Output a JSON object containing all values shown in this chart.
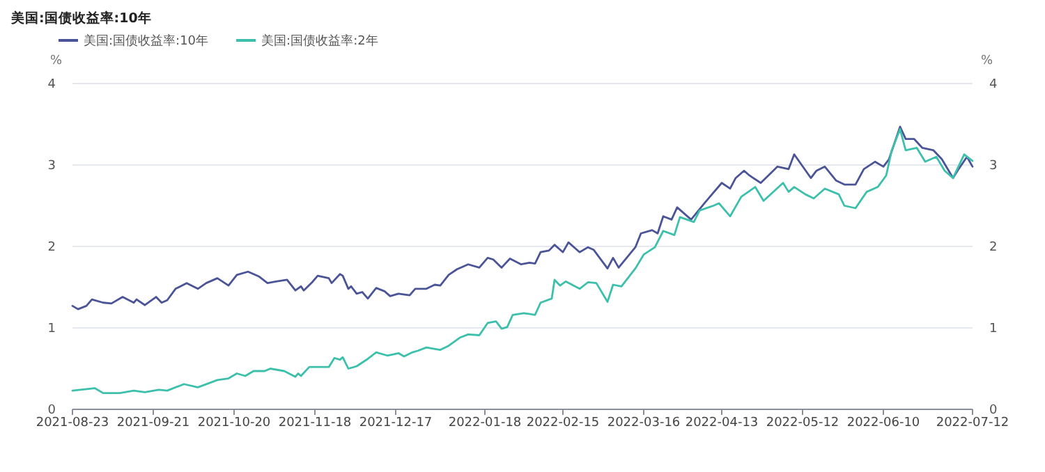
{
  "chart_data": {
    "type": "line",
    "title": "美国:国债收益率:10年",
    "ylabel": "%",
    "y2label": "%",
    "xlim": [
      "2021-08-23",
      "2022-07-12"
    ],
    "xticks": [
      "2021-08-23",
      "2021-09-21",
      "2021-10-20",
      "2021-11-18",
      "2021-12-17",
      "2022-01-18",
      "2022-02-15",
      "2022-03-16",
      "2022-04-13",
      "2022-05-12",
      "2022-06-10",
      "2022-07-12"
    ],
    "ylim": [
      0,
      4
    ],
    "yticks": [
      0,
      1,
      2,
      3,
      4
    ],
    "y2lim": [
      0,
      4
    ],
    "y2ticks": [
      0,
      1,
      2,
      3,
      4
    ],
    "grid": "y",
    "legend": "top left",
    "marker": "none",
    "line_style": "solid",
    "series": [
      {
        "name": "美国:国债收益率:10年",
        "color": "#4a5496",
        "x": [
          "2021-08-23",
          "2021-08-25",
          "2021-08-28",
          "2021-08-30",
          "2021-09-03",
          "2021-09-06",
          "2021-09-10",
          "2021-09-14",
          "2021-09-15",
          "2021-09-18",
          "2021-09-22",
          "2021-09-24",
          "2021-09-26",
          "2021-09-29",
          "2021-10-03",
          "2021-10-07",
          "2021-10-10",
          "2021-10-14",
          "2021-10-18",
          "2021-10-21",
          "2021-10-25",
          "2021-10-29",
          "2021-11-01",
          "2021-11-04",
          "2021-11-08",
          "2021-11-11",
          "2021-11-13",
          "2021-11-14",
          "2021-11-17",
          "2021-11-19",
          "2021-11-23",
          "2021-11-24",
          "2021-11-27",
          "2021-11-28",
          "2021-11-30",
          "2021-12-01",
          "2021-12-03",
          "2021-12-05",
          "2021-12-07",
          "2021-12-10",
          "2021-12-13",
          "2021-12-15",
          "2021-12-18",
          "2021-12-22",
          "2021-12-24",
          "2021-12-28",
          "2021-12-31",
          "2022-01-02",
          "2022-01-05",
          "2022-01-08",
          "2022-01-12",
          "2022-01-16",
          "2022-01-19",
          "2022-01-21",
          "2022-01-24",
          "2022-01-27",
          "2022-01-31",
          "2022-02-03",
          "2022-02-05",
          "2022-02-07",
          "2022-02-10",
          "2022-02-12",
          "2022-02-15",
          "2022-02-17",
          "2022-02-21",
          "2022-02-24",
          "2022-02-26",
          "2022-03-03",
          "2022-03-05",
          "2022-03-07",
          "2022-03-13",
          "2022-03-15",
          "2022-03-19",
          "2022-03-21",
          "2022-03-23",
          "2022-03-26",
          "2022-03-28",
          "2022-04-02",
          "2022-04-07",
          "2022-04-13",
          "2022-04-16",
          "2022-04-18",
          "2022-04-21",
          "2022-04-23",
          "2022-04-27",
          "2022-05-03",
          "2022-05-07",
          "2022-05-09",
          "2022-05-15",
          "2022-05-17",
          "2022-05-20",
          "2022-05-24",
          "2022-05-27",
          "2022-05-31",
          "2022-06-03",
          "2022-06-07",
          "2022-06-10",
          "2022-06-12",
          "2022-06-16",
          "2022-06-18",
          "2022-06-21",
          "2022-06-24",
          "2022-06-28",
          "2022-07-01",
          "2022-07-05",
          "2022-07-07",
          "2022-07-10",
          "2022-07-12"
        ],
        "values": [
          1.27,
          1.23,
          1.27,
          1.35,
          1.31,
          1.3,
          1.38,
          1.31,
          1.35,
          1.28,
          1.38,
          1.31,
          1.34,
          1.48,
          1.55,
          1.48,
          1.55,
          1.61,
          1.52,
          1.65,
          1.69,
          1.63,
          1.55,
          1.57,
          1.59,
          1.46,
          1.51,
          1.46,
          1.56,
          1.64,
          1.61,
          1.55,
          1.66,
          1.64,
          1.48,
          1.51,
          1.42,
          1.44,
          1.36,
          1.49,
          1.45,
          1.39,
          1.42,
          1.4,
          1.48,
          1.48,
          1.53,
          1.52,
          1.65,
          1.72,
          1.78,
          1.74,
          1.86,
          1.84,
          1.74,
          1.85,
          1.78,
          1.8,
          1.79,
          1.93,
          1.95,
          2.02,
          1.93,
          2.05,
          1.93,
          1.99,
          1.96,
          1.73,
          1.86,
          1.74,
          1.99,
          2.16,
          2.2,
          2.16,
          2.37,
          2.33,
          2.48,
          2.33,
          2.54,
          2.78,
          2.71,
          2.84,
          2.93,
          2.87,
          2.78,
          2.98,
          2.95,
          3.13,
          2.84,
          2.93,
          2.98,
          2.81,
          2.76,
          2.76,
          2.95,
          3.04,
          2.98,
          3.07,
          3.47,
          3.32,
          3.32,
          3.21,
          3.18,
          3.07,
          2.84,
          2.95,
          3.1,
          2.98
        ]
      },
      {
        "name": "美国:国债收益率:2年",
        "color": "#3cc0ac",
        "x": [
          "2021-08-23",
          "2021-08-31",
          "2021-09-03",
          "2021-09-09",
          "2021-09-14",
          "2021-09-18",
          "2021-09-23",
          "2021-09-26",
          "2021-10-02",
          "2021-10-07",
          "2021-10-14",
          "2021-10-18",
          "2021-10-21",
          "2021-10-24",
          "2021-10-27",
          "2021-10-31",
          "2021-11-02",
          "2021-11-07",
          "2021-11-11",
          "2021-11-12",
          "2021-11-13",
          "2021-11-16",
          "2021-11-23",
          "2021-11-25",
          "2021-11-27",
          "2021-11-28",
          "2021-11-30",
          "2021-12-03",
          "2021-12-07",
          "2021-12-10",
          "2021-12-14",
          "2021-12-18",
          "2021-12-20",
          "2021-12-23",
          "2021-12-25",
          "2021-12-28",
          "2022-01-02",
          "2022-01-05",
          "2022-01-09",
          "2022-01-12",
          "2022-01-16",
          "2022-01-19",
          "2022-01-22",
          "2022-01-24",
          "2022-01-26",
          "2022-01-28",
          "2022-02-01",
          "2022-02-05",
          "2022-02-07",
          "2022-02-11",
          "2022-02-12",
          "2022-02-14",
          "2022-02-16",
          "2022-02-21",
          "2022-02-24",
          "2022-02-27",
          "2022-03-03",
          "2022-03-05",
          "2022-03-08",
          "2022-03-13",
          "2022-03-16",
          "2022-03-20",
          "2022-03-23",
          "2022-03-27",
          "2022-03-29",
          "2022-04-03",
          "2022-04-05",
          "2022-04-10",
          "2022-04-12",
          "2022-04-16",
          "2022-04-20",
          "2022-04-25",
          "2022-04-28",
          "2022-05-05",
          "2022-05-07",
          "2022-05-09",
          "2022-05-13",
          "2022-05-16",
          "2022-05-20",
          "2022-05-25",
          "2022-05-27",
          "2022-05-31",
          "2022-06-04",
          "2022-06-08",
          "2022-06-11",
          "2022-06-13",
          "2022-06-16",
          "2022-06-18",
          "2022-06-22",
          "2022-06-25",
          "2022-06-29",
          "2022-07-02",
          "2022-07-05",
          "2022-07-09",
          "2022-07-12"
        ],
        "values": [
          0.23,
          0.26,
          0.2,
          0.2,
          0.23,
          0.21,
          0.24,
          0.23,
          0.31,
          0.27,
          0.36,
          0.38,
          0.44,
          0.41,
          0.47,
          0.47,
          0.5,
          0.47,
          0.4,
          0.44,
          0.41,
          0.52,
          0.52,
          0.63,
          0.61,
          0.64,
          0.5,
          0.53,
          0.62,
          0.7,
          0.66,
          0.69,
          0.65,
          0.7,
          0.72,
          0.76,
          0.73,
          0.78,
          0.88,
          0.92,
          0.91,
          1.06,
          1.08,
          0.99,
          1.01,
          1.16,
          1.18,
          1.16,
          1.31,
          1.36,
          1.59,
          1.52,
          1.57,
          1.48,
          1.56,
          1.55,
          1.32,
          1.53,
          1.51,
          1.73,
          1.9,
          1.99,
          2.19,
          2.14,
          2.36,
          2.3,
          2.44,
          2.5,
          2.53,
          2.37,
          2.61,
          2.73,
          2.56,
          2.78,
          2.67,
          2.73,
          2.64,
          2.59,
          2.71,
          2.64,
          2.5,
          2.47,
          2.67,
          2.73,
          2.87,
          3.18,
          3.44,
          3.18,
          3.21,
          3.04,
          3.1,
          2.93,
          2.84,
          3.13,
          3.05
        ]
      }
    ]
  }
}
